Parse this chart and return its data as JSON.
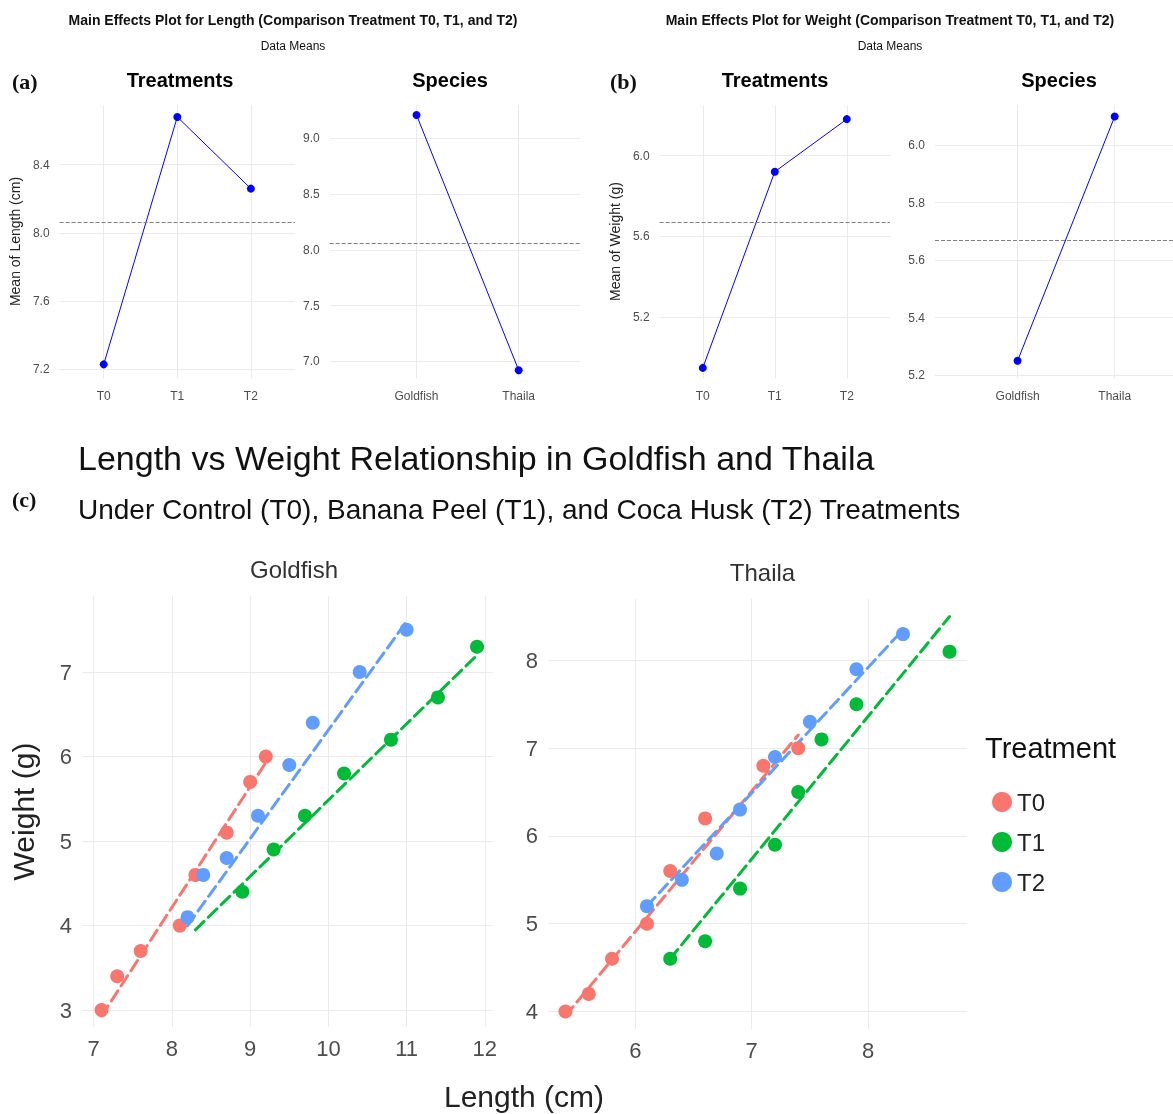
{
  "chart_data": [
    {
      "type": "line",
      "title": "Treatments",
      "ylabel": "Mean of Length (cm)",
      "annotations": [
        "Main Effects Plot for Length (Comparison Treatment T0, T1, and T2)",
        "Data Means",
        "(a)"
      ],
      "categories": [
        "T0",
        "T1",
        "T2"
      ],
      "series": [
        {
          "color": "#0000ff",
          "values": [
            7.23,
            8.68,
            8.26
          ]
        }
      ],
      "ylim": [
        7.15,
        8.75
      ],
      "yticks": [
        7.2,
        7.6,
        {
          "value": 8,
          "label": "8.0"
        },
        8.4
      ],
      "ref_lines": [
        {
          "axis": "y",
          "value": 8.06,
          "color": "#808080",
          "line_style": "dashed"
        }
      ],
      "marker": "circle",
      "grid": true
    },
    {
      "type": "line",
      "title": "Species",
      "categories": [
        "Goldfish",
        "Thaila"
      ],
      "series": [
        {
          "color": "#0000ff",
          "values": [
            9.21,
            6.92
          ]
        }
      ],
      "ylim": [
        6.85,
        9.3
      ],
      "yticks": [
        {
          "value": 7,
          "label": "7.0"
        },
        7.5,
        {
          "value": 8,
          "label": "8.0"
        },
        8.5,
        {
          "value": 9,
          "label": "9.0"
        }
      ],
      "ref_lines": [
        {
          "axis": "y",
          "value": 8.06,
          "color": "#808080",
          "line_style": "dashed"
        }
      ],
      "marker": "circle",
      "grid": true
    },
    {
      "type": "line",
      "title": "Treatments",
      "ylabel": "Mean of Weight (g)",
      "annotations": [
        "Main Effects Plot for Weight (Comparison Treatment T0, T1, and T2)",
        "Data Means",
        "(b)"
      ],
      "categories": [
        "T0",
        "T1",
        "T2"
      ],
      "series": [
        {
          "color": "#0000ff",
          "values": [
            4.95,
            5.92,
            6.18
          ]
        }
      ],
      "ylim": [
        4.9,
        6.25
      ],
      "yticks": [
        5.2,
        5.6,
        {
          "value": 6,
          "label": "6.0"
        }
      ],
      "ref_lines": [
        {
          "axis": "y",
          "value": 5.67,
          "color": "#808080",
          "line_style": "dashed"
        }
      ],
      "marker": "circle",
      "grid": true
    },
    {
      "type": "line",
      "title": "Species",
      "categories": [
        "Goldfish",
        "Thaila"
      ],
      "series": [
        {
          "color": "#0000ff",
          "values": [
            5.25,
            6.1
          ]
        }
      ],
      "ylim": [
        5.19,
        6.14
      ],
      "yticks": [
        5.2,
        5.4,
        5.6,
        5.8,
        {
          "value": 6,
          "label": "6.0"
        }
      ],
      "ref_lines": [
        {
          "axis": "y",
          "value": 5.67,
          "color": "#808080",
          "line_style": "dashed"
        }
      ],
      "marker": "circle",
      "grid": true
    },
    {
      "type": "scatter",
      "title": "Goldfish",
      "xlabel": "Length (cm)",
      "ylabel": "Weight (g)",
      "annotations": [
        "Length vs Weight Relationship in Goldfish and Thaila",
        "Under Control (T0), Banana Peel (T1), and Coca Husk (T2) Treatments",
        "(c)"
      ],
      "series": [
        {
          "color": "#f8766d",
          "x": [
            7.1,
            7.3,
            7.6,
            8.1,
            8.3,
            8.7,
            9.0,
            9.2
          ],
          "values": [
            3.0,
            3.4,
            3.7,
            4.0,
            4.6,
            5.1,
            5.7,
            6.0
          ]
        },
        {
          "color": "#00ba38",
          "x": [
            8.9,
            9.3,
            9.7,
            10.2,
            10.8,
            11.4,
            11.9
          ],
          "values": [
            4.4,
            4.9,
            5.3,
            5.8,
            6.2,
            6.7,
            7.3
          ]
        },
        {
          "color": "#619cff",
          "x": [
            8.2,
            8.4,
            8.7,
            9.1,
            9.5,
            9.8,
            10.4,
            11.0
          ],
          "values": [
            4.1,
            4.6,
            4.8,
            5.3,
            5.9,
            6.4,
            7.0,
            7.5
          ]
        },
        {
          "type": "line",
          "marker": "none",
          "color": "#f8766d",
          "x": [
            7.1,
            9.2
          ],
          "values": [
            2.93,
            5.93
          ]
        },
        {
          "type": "line",
          "marker": "none",
          "color": "#00ba38",
          "x": [
            8.3,
            11.9
          ],
          "values": [
            3.95,
            7.2
          ]
        },
        {
          "type": "line",
          "marker": "none",
          "color": "#619cff",
          "x": [
            8.2,
            11.0
          ],
          "values": [
            4.0,
            7.6
          ]
        }
      ],
      "xlim": [
        6.85,
        12.1
      ],
      "xticks": [
        7,
        8,
        9,
        10,
        11,
        12
      ],
      "ylim": [
        2.8,
        7.9
      ],
      "yticks": [
        3,
        4,
        5,
        6,
        7
      ],
      "marker": "circle",
      "line_style": "dashed",
      "grid": true
    },
    {
      "type": "scatter",
      "title": "Thaila",
      "legend_title": "Treatment",
      "legend": "right",
      "series": [
        {
          "name": "T0",
          "color": "#f8766d",
          "x": [
            5.4,
            5.6,
            5.8,
            6.1,
            6.3,
            6.6,
            7.1,
            7.4
          ],
          "values": [
            4.0,
            4.2,
            4.6,
            5.0,
            5.6,
            6.2,
            6.8,
            7.0
          ]
        },
        {
          "name": "T1",
          "color": "#00ba38",
          "x": [
            6.3,
            6.6,
            6.9,
            7.2,
            7.4,
            7.6,
            7.9,
            8.7
          ],
          "values": [
            4.6,
            4.8,
            5.4,
            5.9,
            6.5,
            7.1,
            7.5,
            8.1
          ]
        },
        {
          "name": "T2",
          "color": "#619cff",
          "x": [
            6.1,
            6.4,
            6.7,
            6.9,
            7.2,
            7.5,
            7.9,
            8.3
          ],
          "values": [
            5.2,
            5.5,
            5.8,
            6.3,
            6.9,
            7.3,
            7.9,
            8.3
          ]
        },
        {
          "type": "line",
          "marker": "none",
          "color": "#f8766d",
          "x": [
            5.4,
            7.4
          ],
          "values": [
            3.95,
            7.15
          ]
        },
        {
          "type": "line",
          "marker": "none",
          "color": "#00ba38",
          "x": [
            6.3,
            8.7
          ],
          "values": [
            4.6,
            8.5
          ]
        },
        {
          "type": "line",
          "marker": "none",
          "color": "#619cff",
          "x": [
            6.1,
            8.3
          ],
          "values": [
            5.2,
            8.35
          ]
        }
      ],
      "xlim": [
        5.25,
        8.85
      ],
      "xticks": [
        6,
        7,
        8
      ],
      "ylim": [
        3.8,
        8.7
      ],
      "yticks": [
        4,
        5,
        6,
        7,
        8
      ],
      "marker": "circle",
      "line_style": "dashed",
      "grid": true
    }
  ]
}
